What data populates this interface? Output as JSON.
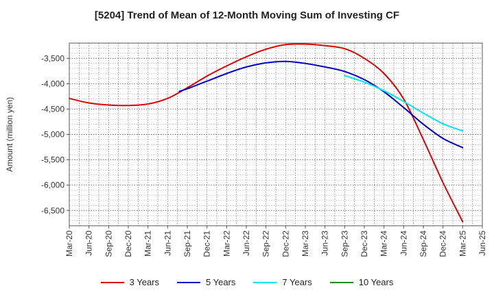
{
  "chart_data": {
    "type": "line",
    "title": "[5204]  Trend of Mean of 12-Month Moving Sum of Investing CF",
    "xlabel": "",
    "ylabel": "Amount (million yen)",
    "ylim": [
      -6800,
      -3200
    ],
    "yticks": [
      -3500,
      -4000,
      -4500,
      -5000,
      -5500,
      -6000,
      -6500
    ],
    "ytick_labels": [
      "-3,500",
      "-4,000",
      "-4,500",
      "-5,000",
      "-5,500",
      "-6,000",
      "-6,500"
    ],
    "xticks": [
      "Mar-20",
      "Jun-20",
      "Sep-20",
      "Dec-20",
      "Mar-21",
      "Jun-21",
      "Sep-21",
      "Dec-21",
      "Mar-22",
      "Jun-22",
      "Sep-22",
      "Dec-22",
      "Mar-23",
      "Jun-23",
      "Sep-23",
      "Dec-23",
      "Mar-24",
      "Jun-24",
      "Sep-24",
      "Dec-24",
      "Mar-25",
      "Jun-25"
    ],
    "grid": true,
    "legend_position": "bottom",
    "series": [
      {
        "name": "3 Years",
        "color": "#e00000",
        "points": [
          [
            0,
            -4290
          ],
          [
            1,
            -4380
          ],
          [
            2,
            -4420
          ],
          [
            3,
            -4430
          ],
          [
            4,
            -4400
          ],
          [
            5,
            -4290
          ],
          [
            6,
            -4080
          ],
          [
            7,
            -3850
          ],
          [
            8,
            -3650
          ],
          [
            9,
            -3470
          ],
          [
            10,
            -3320
          ],
          [
            11,
            -3230
          ],
          [
            12,
            -3220
          ],
          [
            13,
            -3250
          ],
          [
            14,
            -3310
          ],
          [
            15,
            -3500
          ],
          [
            16,
            -3800
          ],
          [
            17,
            -4300
          ],
          [
            18,
            -5100
          ],
          [
            19,
            -5950
          ],
          [
            20,
            -6720
          ]
        ]
      },
      {
        "name": "5 Years",
        "color": "#0000c8",
        "points": [
          [
            5.6,
            -4150
          ],
          [
            6,
            -4100
          ],
          [
            7,
            -3950
          ],
          [
            8,
            -3800
          ],
          [
            9,
            -3670
          ],
          [
            10,
            -3590
          ],
          [
            11,
            -3560
          ],
          [
            12,
            -3600
          ],
          [
            13,
            -3670
          ],
          [
            14,
            -3760
          ],
          [
            15,
            -3920
          ],
          [
            16,
            -4160
          ],
          [
            17,
            -4470
          ],
          [
            18,
            -4800
          ],
          [
            19,
            -5080
          ],
          [
            20,
            -5260
          ]
        ]
      },
      {
        "name": "7 Years",
        "color": "#00e5ee",
        "points": [
          [
            14,
            -3840
          ],
          [
            15,
            -3970
          ],
          [
            16,
            -4140
          ],
          [
            17,
            -4350
          ],
          [
            18,
            -4580
          ],
          [
            19,
            -4790
          ],
          [
            20,
            -4930
          ]
        ]
      },
      {
        "name": "10 Years",
        "color": "#228b22",
        "points": []
      }
    ]
  }
}
